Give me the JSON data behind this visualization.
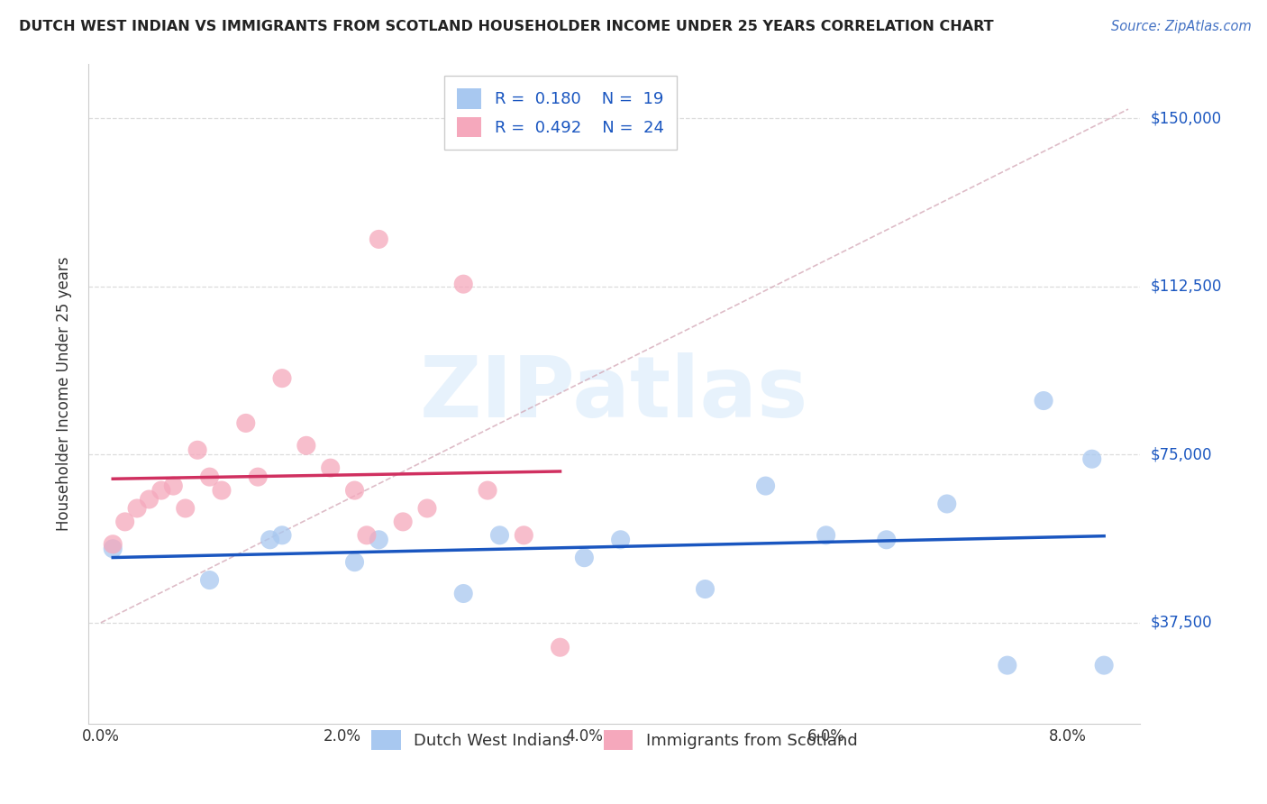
{
  "title": "DUTCH WEST INDIAN VS IMMIGRANTS FROM SCOTLAND HOUSEHOLDER INCOME UNDER 25 YEARS CORRELATION CHART",
  "source": "Source: ZipAtlas.com",
  "ylabel": "Householder Income Under 25 years",
  "y_ticks": [
    37500,
    75000,
    112500,
    150000
  ],
  "y_tick_labels": [
    "$37,500",
    "$75,000",
    "$112,500",
    "$150,000"
  ],
  "ylim": [
    15000,
    162000
  ],
  "xlim": [
    -0.001,
    0.086
  ],
  "x_ticks": [
    0.0,
    0.02,
    0.04,
    0.06,
    0.08
  ],
  "x_tick_labels": [
    "0.0%",
    "2.0%",
    "4.0%",
    "6.0%",
    "8.0%"
  ],
  "r_blue": 0.18,
  "n_blue": 19,
  "r_pink": 0.492,
  "n_pink": 24,
  "blue_color": "#A8C8F0",
  "pink_color": "#F5A8BC",
  "trend_blue_color": "#1A56C0",
  "trend_pink_color": "#D03060",
  "diag_color": "#D0A0B0",
  "blue_scatter_x": [
    0.001,
    0.009,
    0.014,
    0.015,
    0.021,
    0.023,
    0.03,
    0.033,
    0.04,
    0.043,
    0.05,
    0.055,
    0.06,
    0.065,
    0.07,
    0.075,
    0.078,
    0.082,
    0.083
  ],
  "blue_scatter_y": [
    54000,
    47000,
    56000,
    57000,
    51000,
    56000,
    44000,
    57000,
    52000,
    56000,
    45000,
    68000,
    57000,
    56000,
    64000,
    28000,
    87000,
    74000,
    28000
  ],
  "pink_scatter_x": [
    0.001,
    0.002,
    0.003,
    0.004,
    0.005,
    0.006,
    0.007,
    0.008,
    0.009,
    0.01,
    0.012,
    0.013,
    0.015,
    0.017,
    0.019,
    0.021,
    0.022,
    0.023,
    0.025,
    0.027,
    0.03,
    0.032,
    0.035,
    0.038
  ],
  "pink_scatter_y": [
    55000,
    60000,
    63000,
    65000,
    67000,
    68000,
    63000,
    76000,
    70000,
    67000,
    82000,
    70000,
    92000,
    77000,
    72000,
    67000,
    57000,
    123000,
    60000,
    63000,
    113000,
    67000,
    57000,
    32000
  ],
  "legend_label_blue": "Dutch West Indians",
  "legend_label_pink": "Immigrants from Scotland",
  "watermark": "ZIPatlas"
}
